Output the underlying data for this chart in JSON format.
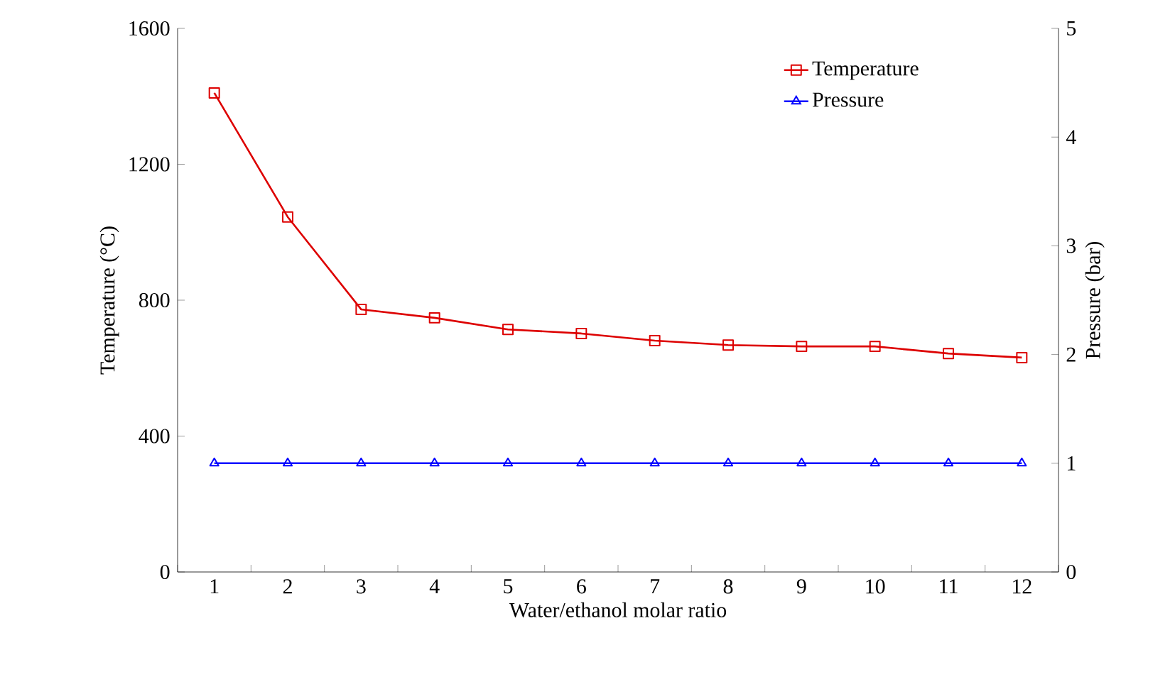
{
  "chart_data": {
    "type": "line",
    "xlabel": "Water/ethanol molar ratio",
    "ylabel": "Temperature (°C)",
    "y2label": "Pressure (bar)",
    "categories": [
      "1",
      "2",
      "3",
      "4",
      "5",
      "6",
      "7",
      "8",
      "9",
      "10",
      "11",
      "12"
    ],
    "series": [
      {
        "name": "Temperature",
        "color": "#dd0000",
        "marker": "square",
        "values": [
          1410,
          1045,
          773,
          748,
          714,
          702,
          681,
          668,
          664,
          664,
          643,
          631
        ]
      },
      {
        "name": "Pressure",
        "color": "#0000ff",
        "marker": "triangle",
        "axis": "y2",
        "values": [
          1,
          1,
          1,
          1,
          1,
          1,
          1,
          1,
          1,
          1,
          1,
          1
        ]
      }
    ],
    "ylim": [
      0,
      1600
    ],
    "yticks": [
      0,
      400,
      800,
      1200,
      1600
    ],
    "y2lim": [
      0,
      5
    ],
    "y2ticks": [
      0,
      1,
      2,
      3,
      4,
      5
    ],
    "grid": false,
    "legend": "top right",
    "line_style": "solid"
  }
}
